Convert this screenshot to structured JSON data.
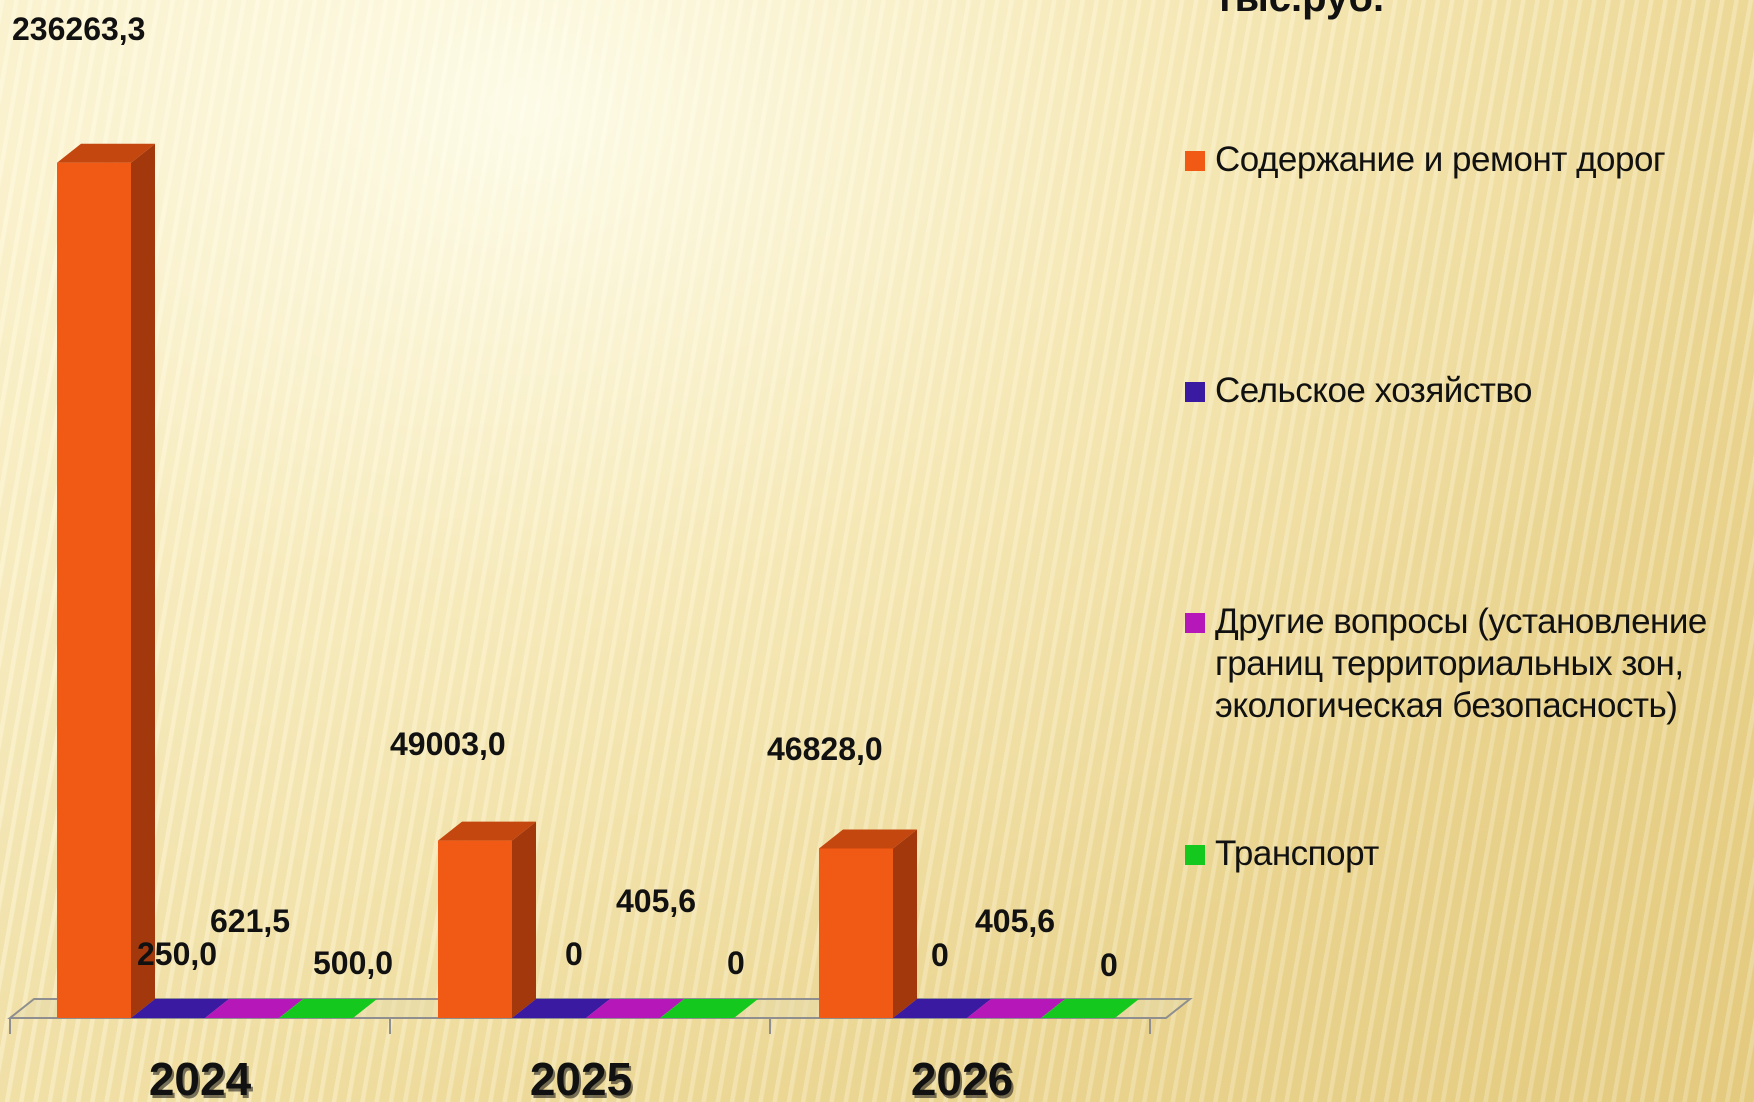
{
  "unit_title": "тыс.руб.",
  "colors": {
    "orange": "#f05a14",
    "orange_side": "#a3380c",
    "orange_top": "#c4470f",
    "blue": "#3a1aa0",
    "magenta": "#b617b8",
    "green": "#14c81e"
  },
  "chart_data": {
    "type": "bar",
    "categories": [
      "2024",
      "2025",
      "2026"
    ],
    "series": [
      {
        "name": "Содержание и ремонт дорог",
        "color": "#f05a14",
        "values": [
          236263.3,
          49003.0,
          46828.0
        ],
        "labels": [
          "236263,3",
          "49003,0",
          "46828,0"
        ]
      },
      {
        "name": "Сельское хозяйство",
        "color": "#3a1aa0",
        "values": [
          250.0,
          0,
          0
        ],
        "labels": [
          "250,0",
          "0",
          "0"
        ]
      },
      {
        "name": "Другие вопросы (установление границ территориальных зон, экологическая безопасность)",
        "color": "#b617b8",
        "values": [
          621.5,
          405.6,
          405.6
        ],
        "labels": [
          "621,5",
          "405,6",
          "405,6"
        ]
      },
      {
        "name": "Транспорт",
        "color": "#14c81e",
        "values": [
          500.0,
          0,
          0
        ],
        "labels": [
          "500,0",
          "0",
          "0"
        ]
      }
    ],
    "ylim": [
      0,
      250000
    ],
    "legend_position": "right",
    "style": "3d-column"
  },
  "legend": {
    "items": [
      {
        "label": "Содержание и ремонт дорог",
        "color": "#f05a14"
      },
      {
        "label": "Сельское хозяйство",
        "color": "#3a1aa0"
      },
      {
        "label": "Другие вопросы (установление границ территориальных зон, экологическая безопасность)",
        "color": "#b617b8"
      },
      {
        "label": "Транспорт",
        "color": "#14c81e"
      }
    ]
  }
}
